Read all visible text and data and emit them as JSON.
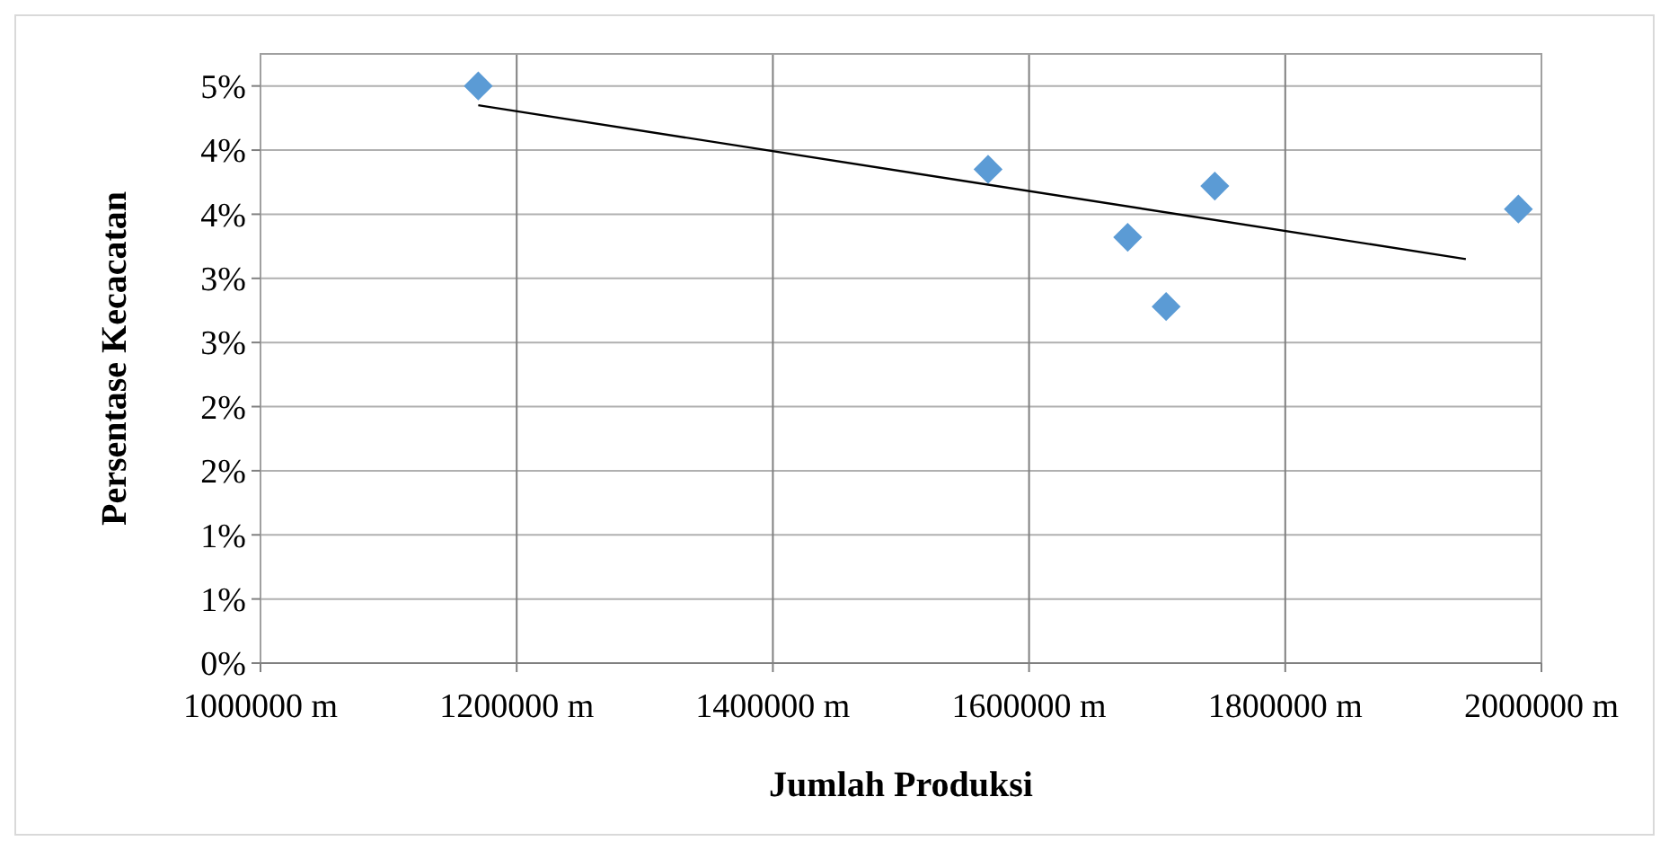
{
  "chart_data": {
    "type": "scatter",
    "xlabel": "Jumlah Produksi",
    "ylabel": "Persentase Kecacatan",
    "xlim": [
      1000000,
      2000000
    ],
    "ylim": [
      0,
      4.75
    ],
    "xticks": [
      {
        "value": 1000000,
        "label": "1000000 m"
      },
      {
        "value": 1200000,
        "label": "1200000 m"
      },
      {
        "value": 1400000,
        "label": "1400000 m"
      },
      {
        "value": 1600000,
        "label": "1600000 m"
      },
      {
        "value": 1800000,
        "label": "1800000 m"
      },
      {
        "value": 2000000,
        "label": "2000000 m"
      }
    ],
    "yticks": [
      {
        "value": 0,
        "label": "0%"
      },
      {
        "value": 0.5,
        "label": "1%"
      },
      {
        "value": 1,
        "label": "1%"
      },
      {
        "value": 1.5,
        "label": "2%"
      },
      {
        "value": 2,
        "label": "2%"
      },
      {
        "value": 2.5,
        "label": "3%"
      },
      {
        "value": 3,
        "label": "3%"
      },
      {
        "value": 3.5,
        "label": "4%"
      },
      {
        "value": 4,
        "label": "4%"
      },
      {
        "value": 4.5,
        "label": "5%"
      }
    ],
    "grid": true,
    "series": [
      {
        "color": "#5b9bd5",
        "marker": "diamond",
        "x": [
          1170000,
          1568000,
          1677000,
          1707000,
          1745000,
          1982000
        ],
        "values": [
          4.5,
          3.85,
          3.32,
          2.78,
          3.72,
          3.54
        ]
      },
      {
        "type": "line",
        "color": "#000000",
        "marker": "none",
        "x": [
          1170000,
          1941000
        ],
        "values": [
          4.35,
          3.15
        ]
      }
    ]
  }
}
